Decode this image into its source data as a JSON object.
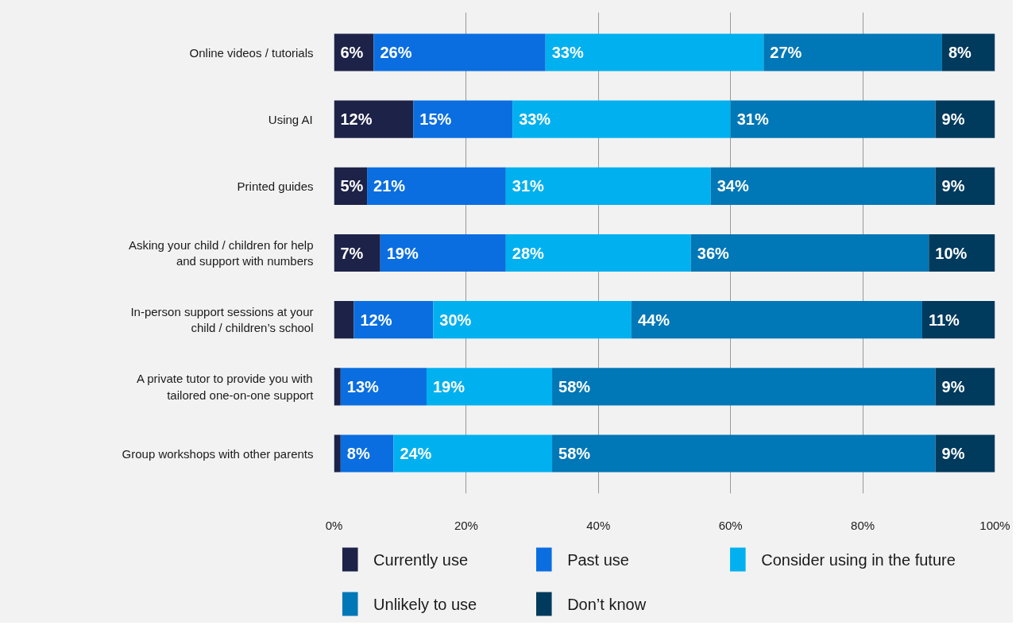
{
  "chart_data": {
    "type": "bar",
    "orientation": "horizontal",
    "stacked": true,
    "categories": [
      "Online videos / tutorials",
      "Using AI",
      "Printed guides",
      "Asking your child / children for help\nand support with numbers",
      "In-person support sessions at your\nchild / children’s school",
      "A private tutor to provide you with\ntailored one-on-one support",
      "Group workshops with other parents"
    ],
    "series": [
      {
        "name": "Currently use",
        "color": "#1d2248",
        "values": [
          6,
          12,
          5,
          7,
          3,
          1,
          1
        ],
        "value_labels": [
          "6%",
          "12%",
          "5%",
          "7%",
          null,
          null,
          null
        ]
      },
      {
        "name": "Past use",
        "color": "#0a6ee0",
        "values": [
          26,
          15,
          21,
          19,
          12,
          13,
          8
        ],
        "value_labels": [
          "26%",
          "15%",
          "21%",
          "19%",
          "12%",
          "13%",
          "8%"
        ]
      },
      {
        "name": "Consider using in the future",
        "color": "#00b0ef",
        "values": [
          33,
          33,
          31,
          28,
          30,
          19,
          24
        ],
        "value_labels": [
          "33%",
          "33%",
          "31%",
          "28%",
          "30%",
          "19%",
          "24%"
        ]
      },
      {
        "name": "Unlikely to use",
        "color": "#0077b6",
        "values": [
          27,
          31,
          34,
          36,
          44,
          58,
          58
        ],
        "value_labels": [
          "27%",
          "31%",
          "34%",
          "36%",
          "44%",
          "58%",
          "58%"
        ]
      },
      {
        "name": "Don’t know",
        "color": "#003a5d",
        "values": [
          8,
          9,
          9,
          10,
          11,
          9,
          9
        ],
        "value_labels": [
          "8%",
          "9%",
          "9%",
          "10%",
          "11%",
          "9%",
          "9%"
        ]
      }
    ],
    "xlim": [
      0,
      100
    ],
    "xticks": [
      {
        "value": 0,
        "label": "0%"
      },
      {
        "value": 20,
        "label": "20%"
      },
      {
        "value": 40,
        "label": "40%"
      },
      {
        "value": 60,
        "label": "60%"
      },
      {
        "value": 80,
        "label": "80%"
      },
      {
        "value": 100,
        "label": "100%"
      }
    ],
    "grid": "x",
    "legend": "bottom"
  }
}
